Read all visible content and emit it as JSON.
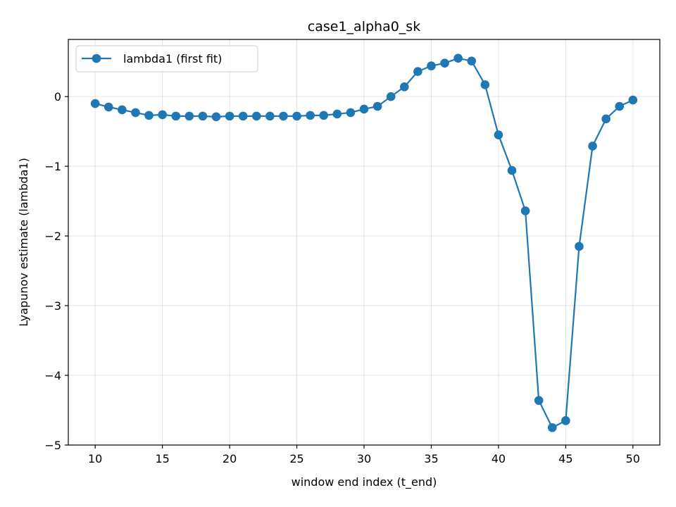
{
  "chart_data": {
    "type": "line",
    "title": "case1_alpha0_sk",
    "xlabel": "window end index (t_end)",
    "ylabel": "Lyapunov estimate (lambda1)",
    "xlim": [
      8,
      52
    ],
    "ylim": [
      -5.0,
      0.82
    ],
    "xticks": [
      10,
      15,
      20,
      25,
      30,
      35,
      40,
      45,
      50
    ],
    "yticks": [
      0,
      -1,
      -2,
      -3,
      -4,
      -5
    ],
    "grid": true,
    "legend_position": "top-left",
    "series_color": "#1f77b4",
    "series": [
      {
        "name": "lambda1 (first fit)",
        "x": [
          10,
          11,
          12,
          13,
          14,
          15,
          16,
          17,
          18,
          19,
          20,
          21,
          22,
          23,
          24,
          25,
          26,
          27,
          28,
          29,
          30,
          31,
          32,
          33,
          34,
          35,
          36,
          37,
          38,
          39,
          40,
          41,
          42,
          43,
          44,
          45,
          46,
          47,
          48,
          49,
          50
        ],
        "y": [
          -0.1,
          -0.15,
          -0.19,
          -0.23,
          -0.27,
          -0.26,
          -0.28,
          -0.28,
          -0.28,
          -0.29,
          -0.28,
          -0.28,
          -0.28,
          -0.28,
          -0.28,
          -0.28,
          -0.27,
          -0.27,
          -0.25,
          -0.23,
          -0.18,
          -0.14,
          0.0,
          0.14,
          0.36,
          0.44,
          0.48,
          0.55,
          0.51,
          0.17,
          -0.55,
          -1.06,
          -1.64,
          -4.36,
          -4.75,
          -4.65,
          -2.15,
          -0.71,
          -0.32,
          -0.14,
          -0.05
        ]
      }
    ]
  }
}
